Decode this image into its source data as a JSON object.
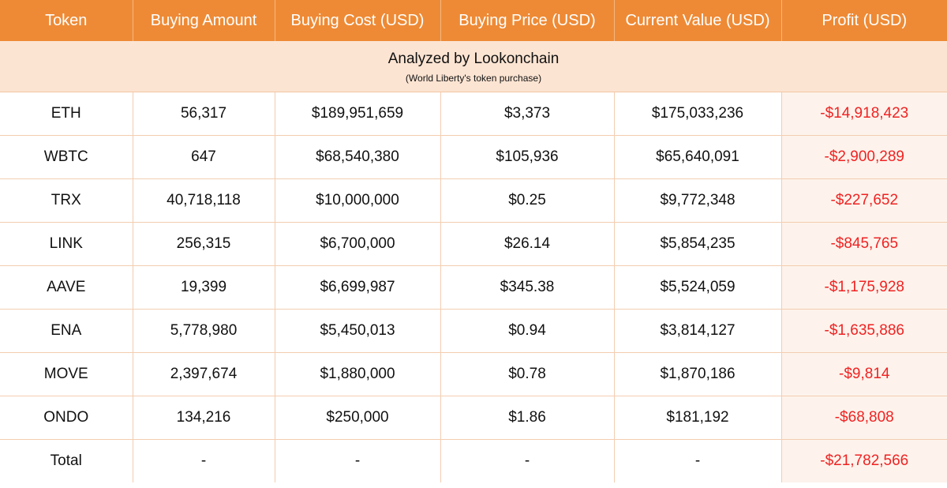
{
  "columns": [
    "Token",
    "Buying Amount",
    "Buying Cost (USD)",
    "Buying Price (USD)",
    "Current Value (USD)",
    "Profit (USD)"
  ],
  "caption": {
    "title": "Analyzed by Lookonchain",
    "subtitle": "(World Liberty's token purchase)"
  },
  "rows": [
    [
      "ETH",
      "56,317",
      "$189,951,659",
      "$3,373",
      "$175,033,236",
      "-$14,918,423"
    ],
    [
      "WBTC",
      "647",
      "$68,540,380",
      "$105,936",
      "$65,640,091",
      "-$2,900,289"
    ],
    [
      "TRX",
      "40,718,118",
      "$10,000,000",
      "$0.25",
      "$9,772,348",
      "-$227,652"
    ],
    [
      "LINK",
      "256,315",
      "$6,700,000",
      "$26.14",
      "$5,854,235",
      "-$845,765"
    ],
    [
      "AAVE",
      "19,399",
      "$6,699,987",
      "$345.38",
      "$5,524,059",
      "-$1,175,928"
    ],
    [
      "ENA",
      "5,778,980",
      "$5,450,013",
      "$0.94",
      "$3,814,127",
      "-$1,635,886"
    ],
    [
      "MOVE",
      "2,397,674",
      "$1,880,000",
      "$0.78",
      "$1,870,186",
      "-$9,814"
    ],
    [
      "ONDO",
      "134,216",
      "$250,000",
      "$1.86",
      "$181,192",
      "-$68,808"
    ],
    [
      "Total",
      "-",
      "-",
      "-",
      "-",
      "-$21,782,566"
    ]
  ],
  "colors": {
    "header_bg": "#ee8a35",
    "caption_bg": "#fce4d2",
    "profit_text": "#f02222",
    "profit_bg": "#fdf3ec"
  }
}
